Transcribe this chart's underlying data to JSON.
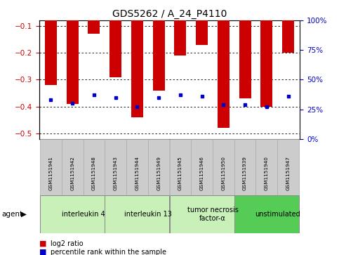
{
  "title": "GDS5262 / A_24_P4110",
  "samples": [
    "GSM1151941",
    "GSM1151942",
    "GSM1151948",
    "GSM1151943",
    "GSM1151944",
    "GSM1151949",
    "GSM1151945",
    "GSM1151946",
    "GSM1151950",
    "GSM1151939",
    "GSM1151940",
    "GSM1151947"
  ],
  "log2_ratio": [
    -0.32,
    -0.39,
    -0.13,
    -0.29,
    -0.44,
    -0.34,
    -0.21,
    -0.17,
    -0.48,
    -0.37,
    -0.4,
    -0.2
  ],
  "percentile": [
    33,
    30,
    37,
    35,
    27,
    35,
    37,
    36,
    29,
    29,
    27,
    36
  ],
  "agents": [
    {
      "label": "interleukin 4",
      "start": 0,
      "end": 3,
      "color": "#c8f0b8"
    },
    {
      "label": "interleukin 13",
      "start": 3,
      "end": 6,
      "color": "#c8f0b8"
    },
    {
      "label": "tumor necrosis\nfactor-α",
      "start": 6,
      "end": 9,
      "color": "#c8f0b8"
    },
    {
      "label": "unstimulated",
      "start": 9,
      "end": 12,
      "color": "#55cc55"
    }
  ],
  "bar_color": "#cc0000",
  "dot_color": "#0000cc",
  "ylim_left": [
    -0.52,
    -0.08
  ],
  "ylim_right": [
    0,
    100
  ],
  "yticks_left": [
    -0.5,
    -0.4,
    -0.3,
    -0.2,
    -0.1
  ],
  "yticks_right": [
    0,
    25,
    50,
    75,
    100
  ],
  "bar_width": 0.55,
  "background_color": "#ffffff",
  "plot_bg_color": "#ffffff",
  "axis_label_color_left": "#cc0000",
  "axis_label_color_right": "#0000cc",
  "sample_box_color": "#cccccc",
  "agent_light_color": "#c8f0b8",
  "agent_dark_color": "#55cc55"
}
